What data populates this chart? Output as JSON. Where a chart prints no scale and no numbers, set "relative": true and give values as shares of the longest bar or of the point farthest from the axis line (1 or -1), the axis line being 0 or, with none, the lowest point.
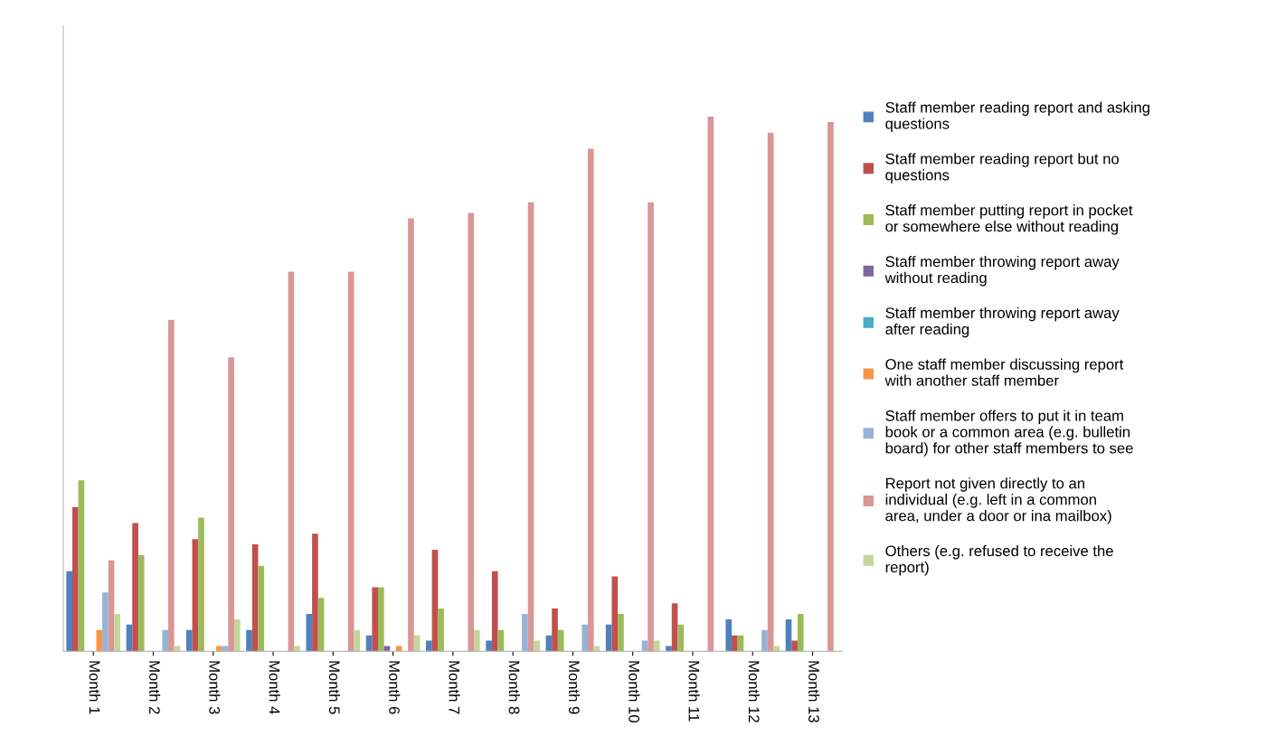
{
  "chart_data": {
    "type": "bar",
    "relative": true,
    "legend": "right",
    "categories": [
      "Month 1",
      "Month 2",
      "Month 3",
      "Month 4",
      "Month 5",
      "Month 6",
      "Month 7",
      "Month 8",
      "Month 9",
      "Month 10",
      "Month 11",
      "Month 12",
      "Month 13"
    ],
    "series": [
      {
        "name": "Staff member reading report and asking questions",
        "color": "#4f81bd",
        "values": [
          0.15,
          0.05,
          0.04,
          0.04,
          0.07,
          0.03,
          0.02,
          0.02,
          0.03,
          0.05,
          0.01,
          0.06,
          0.06
        ]
      },
      {
        "name": "Staff member reading report but no questions",
        "color": "#c0504d",
        "values": [
          0.27,
          0.24,
          0.21,
          0.2,
          0.22,
          0.12,
          0.19,
          0.15,
          0.08,
          0.14,
          0.09,
          0.03,
          0.02
        ]
      },
      {
        "name": "Staff member putting report in pocket or somewhere else without reading",
        "color": "#9bbb59",
        "values": [
          0.32,
          0.18,
          0.25,
          0.16,
          0.1,
          0.12,
          0.08,
          0.04,
          0.04,
          0.07,
          0.05,
          0.03,
          0.07
        ]
      },
      {
        "name": "Staff member throwing report away without reading",
        "color": "#8064a2",
        "values": [
          0,
          0,
          0,
          0,
          0,
          0.01,
          0,
          0,
          0,
          0,
          0,
          0,
          0
        ]
      },
      {
        "name": "Staff member throwing report away after reading",
        "color": "#4bacc6",
        "values": [
          0,
          0,
          0,
          0,
          0,
          0,
          0,
          0,
          0,
          0,
          0,
          0,
          0
        ]
      },
      {
        "name": "One staff member discussing report with another staff member",
        "color": "#f79646",
        "values": [
          0.04,
          0,
          0.01,
          0,
          0,
          0.01,
          0,
          0,
          0,
          0,
          0,
          0,
          0
        ]
      },
      {
        "name": "Staff member offers to put it in team book or a common area (e.g. bulletin board) for other staff members to see",
        "color": "#95b3d7",
        "values": [
          0.11,
          0.04,
          0.01,
          0,
          0,
          0,
          0,
          0.07,
          0.05,
          0.02,
          0,
          0.04,
          0
        ]
      },
      {
        "name": "Report not given directly to an individual (e.g. left in a common area, under a door or ina mailbox)",
        "color": "#d99694",
        "values": [
          0.17,
          0.62,
          0.55,
          0.71,
          0.71,
          0.81,
          0.82,
          0.84,
          0.94,
          0.84,
          1,
          0.97,
          0.99
        ]
      },
      {
        "name": "Others (e.g. refused to receive the report)",
        "color": "#c3d69b",
        "values": [
          0.07,
          0.01,
          0.06,
          0.01,
          0.04,
          0.03,
          0.04,
          0.02,
          0.01,
          0.02,
          0,
          0.01,
          0
        ]
      }
    ]
  }
}
